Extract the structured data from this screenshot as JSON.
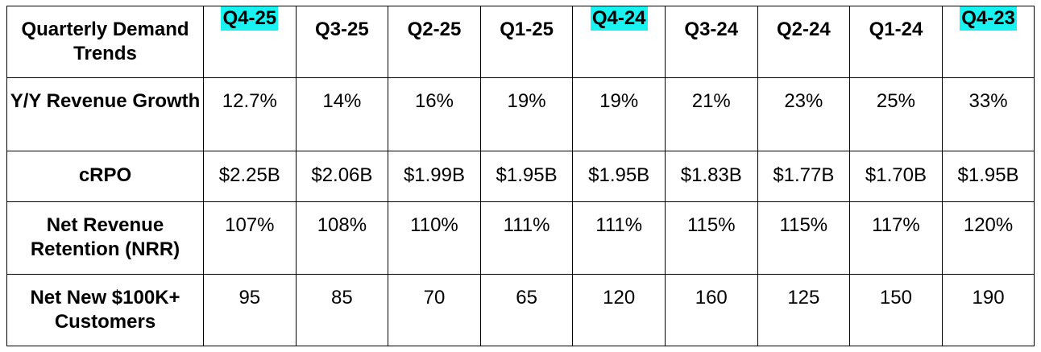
{
  "table": {
    "corner_label": "Quarterly Demand Trends",
    "columns": [
      {
        "label": "Q4-25",
        "highlight": true
      },
      {
        "label": "Q3-25",
        "highlight": false
      },
      {
        "label": "Q2-25",
        "highlight": false
      },
      {
        "label": "Q1-25",
        "highlight": false
      },
      {
        "label": "Q4-24",
        "highlight": true
      },
      {
        "label": "Q3-24",
        "highlight": false
      },
      {
        "label": "Q2-24",
        "highlight": false
      },
      {
        "label": "Q1-24",
        "highlight": false
      },
      {
        "label": "Q4-23",
        "highlight": true
      }
    ],
    "highlight_color": "#18f2f0",
    "rows": [
      {
        "label": "Y/Y Revenue Growth",
        "values": [
          "12.7%",
          "14%",
          "16%",
          "19%",
          "19%",
          "21%",
          "23%",
          "25%",
          "33%"
        ]
      },
      {
        "label": "cRPO",
        "values": [
          "$2.25B",
          "$2.06B",
          "$1.99B",
          "$1.95B",
          "$1.95B",
          "$1.83B",
          "$1.77B",
          "$1.70B",
          "$1.95B"
        ]
      },
      {
        "label": "Net Revenue Retention (NRR)",
        "values": [
          "107%",
          "108%",
          "110%",
          "111%",
          "111%",
          "115%",
          "115%",
          "117%",
          "120%"
        ]
      },
      {
        "label": "Net New $100K+ Customers",
        "values": [
          "95",
          "85",
          "70",
          "65",
          "120",
          "160",
          "125",
          "150",
          "190"
        ]
      }
    ]
  }
}
